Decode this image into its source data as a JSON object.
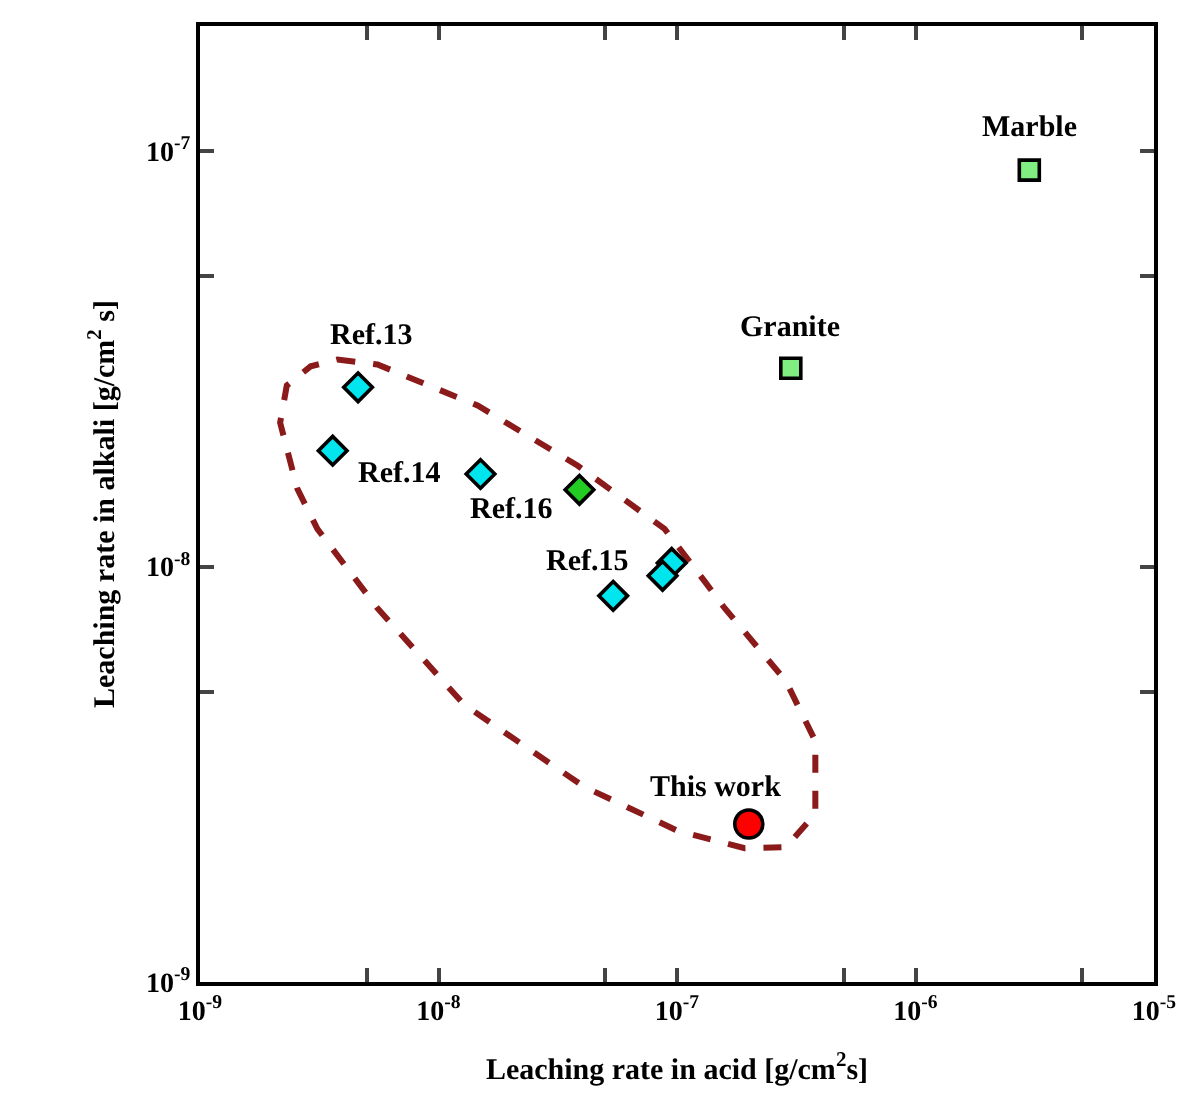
{
  "chart_data": {
    "type": "scatter",
    "xlabel": "Leaching rate in acid [g/cm$^{2}$s]",
    "ylabel": "Leaching rate in alkali [g/cm$^{2}$ s]",
    "log": "xy",
    "grid": false,
    "xlim": [
      1e-09,
      1e-05
    ],
    "xticks": [
      {
        "value": 1e-09,
        "label": "10$^{-9}$"
      },
      {
        "value": 5e-09,
        "label": null
      },
      {
        "value": 1e-08,
        "label": "10$^{-8}$"
      },
      {
        "value": 5e-08,
        "label": null
      },
      {
        "value": 1e-07,
        "label": "10$^{-7}$"
      },
      {
        "value": 5e-07,
        "label": null
      },
      {
        "value": 1e-06,
        "label": "10$^{-6}$"
      },
      {
        "value": 5e-06,
        "label": null
      },
      {
        "value": 1e-05,
        "label": "10$^{-5}$"
      }
    ],
    "ylim": [
      1e-09,
      2e-07
    ],
    "yticks": [
      {
        "value": 1e-09,
        "label": "10$^{-9}$"
      },
      {
        "value": 5e-09,
        "label": null
      },
      {
        "value": 1e-08,
        "label": "10$^{-8}$"
      },
      {
        "value": 5e-08,
        "label": null
      },
      {
        "value": 1e-07,
        "label": "10$^{-7}$"
      }
    ],
    "series": [
      {
        "marker": "diamond",
        "color": "#00e5ee",
        "x": [
          4.6e-09,
          3.6e-09,
          1.5e-08,
          9.5e-08,
          8.7e-08,
          5.4e-08
        ],
        "values": [
          2.7e-08,
          1.9e-08,
          1.67e-08,
          1.02e-08,
          9.5e-09,
          8.5e-09
        ]
      },
      {
        "marker": "diamond",
        "color": "#22cc22",
        "x": [
          3.9e-08
        ],
        "values": [
          1.53e-08
        ]
      },
      {
        "marker": "square",
        "color": "#80ee80",
        "x": [
          3e-07,
          3e-06
        ],
        "values": [
          3e-08,
          9e-08
        ]
      },
      {
        "marker": "circle",
        "color": "#ff0000",
        "x": [
          2e-07
        ],
        "values": [
          2.4e-09
        ]
      }
    ],
    "annotations": [
      {
        "text": "Marble",
        "x": 3e-06,
        "y": 9e-08
      },
      {
        "text": "Granite",
        "x": 3e-07,
        "y": 3e-08
      },
      {
        "text": "Ref.13",
        "x": 4.6e-09,
        "y": 2.7e-08
      },
      {
        "text": "Ref.14",
        "x": 1.5e-08,
        "y": 1.67e-08
      },
      {
        "text": "Ref.16",
        "x": 3.9e-08,
        "y": 1.53e-08
      },
      {
        "text": "Ref.15",
        "x": 9.5e-08,
        "y": 1.02e-08
      },
      {
        "text": "This work",
        "x": 2e-07,
        "y": 2.4e-09
      }
    ]
  }
}
